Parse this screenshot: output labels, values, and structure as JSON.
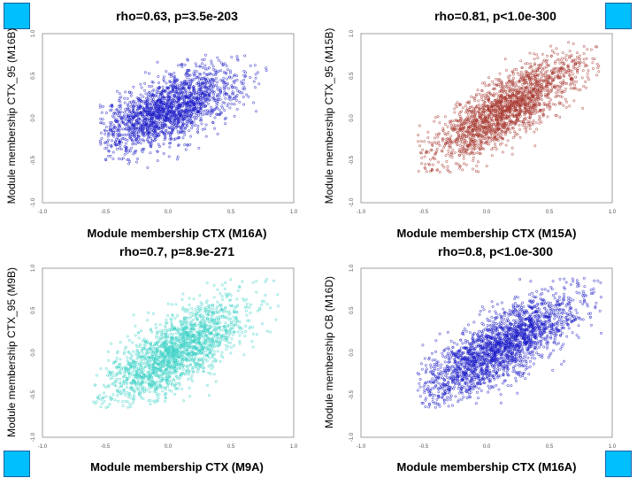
{
  "colors": {
    "accent_corner": "#00bfff",
    "series_blue": "#1f1fc8",
    "series_red": "#a83a32",
    "series_cyan": "#3fd3c8"
  },
  "corner_icons": [
    "blue-square-icon",
    "blue-square-icon",
    "blue-square-icon",
    "blue-square-icon"
  ],
  "chart_data": [
    {
      "type": "scatter",
      "title": "rho=0.63, p=3.5e-203",
      "xlabel": "Module membership CTX (M16A)",
      "ylabel": "Module membership CTX_95 (M16B)",
      "xlim": [
        -1.0,
        1.0
      ],
      "ylim": [
        -1.0,
        1.0
      ],
      "xticks": [
        "-1.0",
        "-0.5",
        "0.0",
        "0.5",
        "1.0"
      ],
      "yticks": [
        "-1.0",
        "-0.5",
        "0.0",
        "0.5",
        "1.0"
      ],
      "color": "#1f1fc8",
      "n_points": 1900,
      "rho": 0.63,
      "x_center": 0.0,
      "x_sd": 0.28,
      "y_center": 0.1,
      "y_sd": 0.24,
      "x_range": [
        -0.55,
        0.8
      ],
      "y_range": [
        -0.6,
        0.75
      ]
    },
    {
      "type": "scatter",
      "title": "rho=0.81, p<1.0e-300",
      "xlabel": "Module membership CTX (M15A)",
      "ylabel": "Module membership CTX_95 (M15B)",
      "xlim": [
        -1.0,
        1.0
      ],
      "ylim": [
        -1.0,
        1.0
      ],
      "xticks": [
        "-1.0",
        "-0.5",
        "0.0",
        "0.5",
        "1.0"
      ],
      "yticks": [
        "-1.0",
        "-0.5",
        "0.0",
        "0.5",
        "1.0"
      ],
      "color": "#a83a32",
      "n_points": 2000,
      "rho": 0.81,
      "x_center": 0.15,
      "x_sd": 0.3,
      "y_center": 0.1,
      "y_sd": 0.32,
      "x_range": [
        -0.55,
        0.9
      ],
      "y_range": [
        -0.65,
        0.9
      ]
    },
    {
      "type": "scatter",
      "title": "rho=0.7, p=8.9e-271",
      "xlabel": "Module membership CTX (M9A)",
      "ylabel": "Module membership CTX_95 (M9B)",
      "xlim": [
        -1.0,
        1.0
      ],
      "ylim": [
        -1.0,
        1.0
      ],
      "xticks": [
        "-1.0",
        "-0.5",
        "0.0",
        "0.5",
        "1.0"
      ],
      "yticks": [
        "-1.0",
        "-0.5",
        "0.0",
        "0.5",
        "1.0"
      ],
      "color": "#3fd3c8",
      "n_points": 1900,
      "rho": 0.7,
      "x_center": 0.05,
      "x_sd": 0.28,
      "y_center": 0.0,
      "y_sd": 0.3,
      "x_range": [
        -0.6,
        0.95
      ],
      "y_range": [
        -0.65,
        0.9
      ]
    },
    {
      "type": "scatter",
      "title": "rho=0.8, p<1.0e-300",
      "xlabel": "Module membership CTX (M16A)",
      "ylabel": "Module membership CB (M16D)",
      "xlim": [
        -1.0,
        1.0
      ],
      "ylim": [
        -1.0,
        1.0
      ],
      "xticks": [
        "-1.0",
        "-0.5",
        "0.0",
        "0.5",
        "1.0"
      ],
      "yticks": [
        "-1.0",
        "-0.5",
        "0.0",
        "0.5",
        "1.0"
      ],
      "color": "#1f1fc8",
      "n_points": 2200,
      "rho": 0.8,
      "x_center": 0.1,
      "x_sd": 0.33,
      "y_center": 0.05,
      "y_sd": 0.34,
      "x_range": [
        -0.55,
        0.95
      ],
      "y_range": [
        -0.65,
        0.9
      ]
    }
  ]
}
